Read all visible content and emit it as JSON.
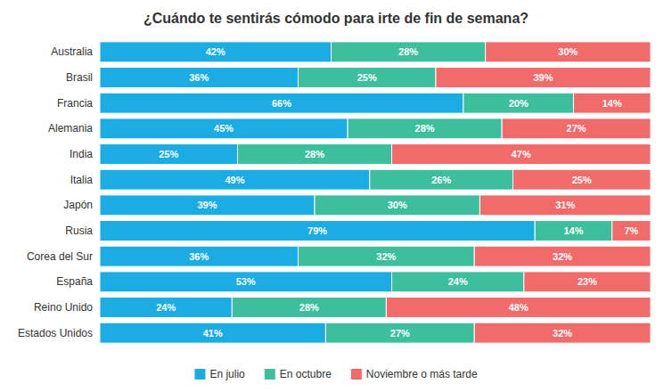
{
  "chart_data": {
    "type": "bar",
    "orientation": "horizontal",
    "stacked": true,
    "title": "¿Cuándo te sentirás cómodo para irte de fin de semana?",
    "categories": [
      "Australia",
      "Brasil",
      "Francia",
      "Alemania",
      "India",
      "Italia",
      "Japón",
      "Rusia",
      "Corea del Sur",
      "España",
      "Reino Unido",
      "Estados Unidos"
    ],
    "series": [
      {
        "name": "En julio",
        "color": "#1aace3",
        "values": [
          42,
          36,
          66,
          45,
          25,
          49,
          39,
          79,
          36,
          53,
          24,
          41
        ],
        "value_labels": [
          "42%",
          "36%",
          "66%",
          "45%",
          "25%",
          "49%",
          "39%",
          "79%",
          "36%",
          "53%",
          "24%",
          "41%"
        ]
      },
      {
        "name": "En octubre",
        "color": "#3dbf9e",
        "values": [
          28,
          25,
          20,
          28,
          28,
          26,
          30,
          14,
          32,
          24,
          28,
          27
        ],
        "value_labels": [
          "28%",
          "25%",
          "20%",
          "28%",
          "28%",
          "26%",
          "30%",
          "14%",
          "32%",
          "24%",
          "28%",
          "27%"
        ]
      },
      {
        "name": "Noviembre o más tarde",
        "color": "#f26b6b",
        "values": [
          30,
          39,
          14,
          27,
          47,
          25,
          31,
          7,
          32,
          23,
          48,
          32
        ],
        "value_labels": [
          "30%",
          "39%",
          "14%",
          "27%",
          "47%",
          "25%",
          "31%",
          "7%",
          "32%",
          "23%",
          "48%",
          "32%"
        ]
      }
    ],
    "xlim": [
      0,
      100
    ],
    "tick_labels": "y",
    "data_labels": true,
    "grid": false,
    "legend": "bottom"
  }
}
